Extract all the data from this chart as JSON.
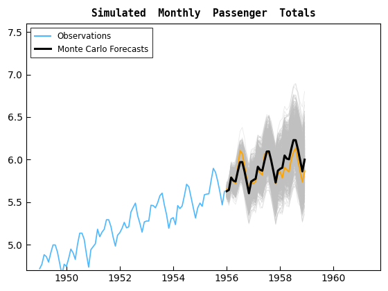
{
  "title": "Simulated  Monthly  Passenger  Totals",
  "xlabel": "",
  "ylabel": "",
  "xlim": [
    1948.5,
    1961.75
  ],
  "ylim": [
    4.7,
    7.6
  ],
  "yticks": [
    5.0,
    5.5,
    6.0,
    6.5,
    7.0,
    7.5
  ],
  "xticks": [
    1950,
    1952,
    1954,
    1956,
    1958,
    1960
  ],
  "obs_color": "#4CB8FF",
  "mc_color": "#C0C0C0",
  "mean_color": "#000000",
  "highlight_color": "#FFA500",
  "obs_linewidth": 1.2,
  "mc_linewidth": 0.6,
  "mean_linewidth": 2.2,
  "highlight_linewidth": 1.4,
  "n_mc_paths": 1000,
  "seed": 0
}
